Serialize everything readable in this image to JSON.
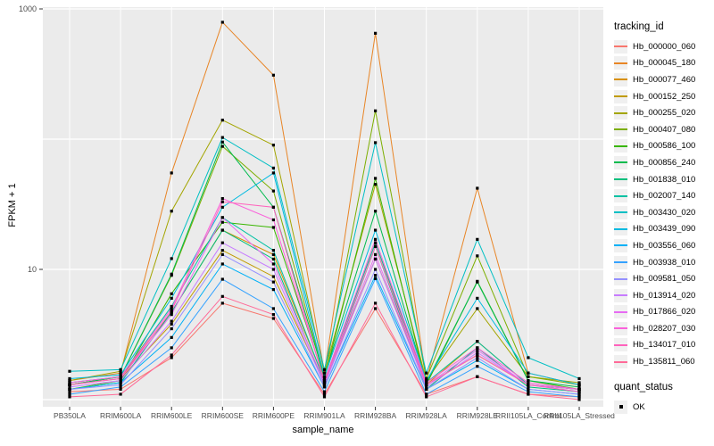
{
  "colors": {
    "panel_bg": "#EBEBEB",
    "grid": "#FFFFFF",
    "tick": "#333333",
    "axis_text": "#4D4D4D",
    "axis_title": "#000000",
    "marker": "#000000",
    "legend_key_bg": "#F0F0F0"
  },
  "legend": {
    "tracking_title": "tracking_id",
    "quant_title": "quant_status",
    "quant_ok_label": "OK"
  },
  "chart_data": {
    "type": "line",
    "title": "",
    "xlabel": "sample_name",
    "ylabel": "FPKM + 1",
    "y_scale": "log10",
    "ylim": [
      1,
      1000
    ],
    "y_ticks": [
      {
        "value": 1000,
        "label": "1000"
      },
      {
        "value": 10,
        "label": "10"
      }
    ],
    "y_gridlines": [
      1,
      10,
      100,
      1000
    ],
    "grid": true,
    "legend_position": "right",
    "marker_shape": "square",
    "categories": [
      "PB350LA",
      "RRIM600LA",
      "RRIM600LE",
      "RRIM600SE",
      "RRIM600PE",
      "RRIM901LA",
      "RRIM928BA",
      "RRIM928LA",
      "RRIM928LE",
      "RRII105LA_Control",
      "RRII105LA_Stressed"
    ],
    "series": [
      {
        "name": "Hb_000000_060",
        "color": "#F8766D",
        "values": [
          1.15,
          1.2,
          2.1,
          5.5,
          4.2,
          1.1,
          5.0,
          1.1,
          1.5,
          1.1,
          1.05
        ]
      },
      {
        "name": "Hb_000045_180",
        "color": "#E88526",
        "values": [
          1.4,
          1.6,
          55,
          790,
          310,
          1.6,
          650,
          1.4,
          42,
          1.6,
          1.3
        ]
      },
      {
        "name": "Hb_000077_460",
        "color": "#D89000",
        "values": [
          1.3,
          1.5,
          4.7,
          20,
          13,
          1.4,
          16,
          1.3,
          2.8,
          1.3,
          1.2
        ]
      },
      {
        "name": "Hb_000152_250",
        "color": "#C09B00",
        "values": [
          1.3,
          1.45,
          3.8,
          14,
          8.8,
          1.35,
          12,
          1.3,
          2.2,
          1.3,
          1.2
        ]
      },
      {
        "name": "Hb_000255_020",
        "color": "#A3A500",
        "values": [
          1.4,
          1.65,
          28,
          140,
          90,
          1.6,
          45,
          1.4,
          5.0,
          1.5,
          1.35
        ]
      },
      {
        "name": "Hb_000407_080",
        "color": "#7CAE00",
        "values": [
          1.3,
          1.5,
          9.0,
          88,
          40,
          1.5,
          165,
          1.45,
          12.7,
          1.5,
          1.3
        ]
      },
      {
        "name": "Hb_000586_100",
        "color": "#39B600",
        "values": [
          1.2,
          1.4,
          6.5,
          23,
          21,
          1.45,
          50,
          1.3,
          8.1,
          1.4,
          1.2
        ]
      },
      {
        "name": "Hb_000856_240",
        "color": "#00BB4E",
        "values": [
          1.3,
          1.5,
          9.2,
          95,
          30,
          1.5,
          28,
          1.35,
          8.0,
          1.4,
          1.25
        ]
      },
      {
        "name": "Hb_001838_010",
        "color": "#00BF7D",
        "values": [
          1.2,
          1.35,
          4.7,
          20,
          12,
          1.3,
          15,
          1.2,
          2.5,
          1.25,
          1.15
        ]
      },
      {
        "name": "Hb_002007_140",
        "color": "#00C1A3",
        "values": [
          1.35,
          1.5,
          5.2,
          25,
          14,
          1.4,
          16,
          1.35,
          2.8,
          1.3,
          1.2
        ]
      },
      {
        "name": "Hb_003430_020",
        "color": "#00BFC4",
        "values": [
          1.65,
          1.7,
          12.1,
          103,
          60,
          1.7,
          94,
          1.6,
          17,
          2.1,
          1.45
        ]
      },
      {
        "name": "Hb_003439_090",
        "color": "#00BAE0",
        "values": [
          1.45,
          1.55,
          6.0,
          30,
          55,
          1.5,
          20,
          1.4,
          6.0,
          1.6,
          1.3
        ]
      },
      {
        "name": "Hb_003556_060",
        "color": "#00B0F6",
        "values": [
          1.2,
          1.35,
          3.0,
          11,
          7.0,
          1.25,
          9.0,
          1.2,
          2.0,
          1.2,
          1.1
        ]
      },
      {
        "name": "Hb_003938_010",
        "color": "#35A2FF",
        "values": [
          1.1,
          1.25,
          2.5,
          8.4,
          5.0,
          1.15,
          8.5,
          1.1,
          1.8,
          1.15,
          1.05
        ]
      },
      {
        "name": "Hb_009581_050",
        "color": "#9590FF",
        "values": [
          1.2,
          1.3,
          3.5,
          13,
          8.0,
          1.25,
          10,
          1.2,
          2.1,
          1.2,
          1.1
        ]
      },
      {
        "name": "Hb_013914_020",
        "color": "#C77CFF",
        "values": [
          1.25,
          1.4,
          4.0,
          16,
          10,
          1.3,
          12,
          1.25,
          2.3,
          1.3,
          1.15
        ]
      },
      {
        "name": "Hb_017866_020",
        "color": "#E76BF3",
        "values": [
          1.3,
          1.45,
          4.5,
          25,
          11,
          1.35,
          13,
          1.3,
          2.4,
          1.3,
          1.2
        ]
      },
      {
        "name": "Hb_028207_030",
        "color": "#FA62DB",
        "values": [
          1.35,
          1.5,
          5.0,
          35,
          24,
          1.4,
          17,
          1.35,
          2.5,
          1.35,
          1.2
        ]
      },
      {
        "name": "Hb_134017_010",
        "color": "#FF62BC",
        "values": [
          1.3,
          1.45,
          4.8,
          33,
          30,
          1.35,
          15,
          1.3,
          2.2,
          1.3,
          1.15
        ]
      },
      {
        "name": "Hb_135811_060",
        "color": "#FF6A98",
        "values": [
          1.05,
          1.1,
          2.2,
          6.2,
          4.5,
          1.05,
          5.5,
          1.05,
          1.5,
          1.1,
          1.0
        ]
      }
    ]
  }
}
